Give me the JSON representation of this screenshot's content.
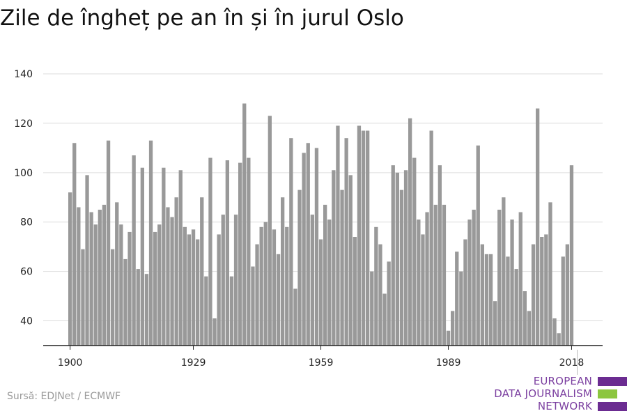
{
  "title": "Zile de îngheț pe an în și în jurul Oslo",
  "source": "Sursă: EDJNet / ECMWF",
  "logo": {
    "lines": [
      "EUROPEAN",
      "DATA JOURNALISM",
      "NETWORK"
    ],
    "colors": {
      "purple": "#6b2c91",
      "green": "#8cc63f",
      "text": "#7b3fa0"
    }
  },
  "colors": {
    "bar": "#999999",
    "grid": "#dddddd",
    "axis": "#222222",
    "text": "#222222"
  },
  "chart_data": {
    "type": "bar",
    "title": "Zile de îngheț pe an în și în jurul Oslo",
    "xlabel": "",
    "ylabel": "",
    "x_start": 1900,
    "x_ticks": [
      "1900",
      "1929",
      "1959",
      "1989",
      "2018"
    ],
    "y_ticks": [
      "40",
      "60",
      "80",
      "100",
      "120",
      "140"
    ],
    "ylim": [
      30,
      140
    ],
    "grid": true,
    "values": [
      92,
      112,
      86,
      69,
      99,
      84,
      79,
      85,
      87,
      113,
      69,
      88,
      79,
      65,
      76,
      107,
      61,
      102,
      59,
      113,
      76,
      79,
      102,
      86,
      82,
      90,
      101,
      78,
      75,
      77,
      73,
      90,
      58,
      106,
      41,
      75,
      83,
      105,
      58,
      83,
      104,
      128,
      106,
      62,
      71,
      78,
      80,
      123,
      77,
      67,
      90,
      78,
      114,
      53,
      93,
      108,
      112,
      83,
      110,
      73,
      87,
      81,
      101,
      119,
      93,
      114,
      99,
      74,
      119,
      117,
      117,
      60,
      78,
      71,
      51,
      64,
      103,
      100,
      93,
      101,
      122,
      106,
      81,
      75,
      84,
      117,
      87,
      103,
      87,
      36,
      44,
      68,
      60,
      73,
      81,
      85,
      111,
      71,
      67,
      67,
      48,
      85,
      90,
      66,
      81,
      61,
      84,
      52,
      44,
      71,
      126,
      74,
      75,
      88,
      41,
      35,
      66,
      71,
      103
    ]
  }
}
